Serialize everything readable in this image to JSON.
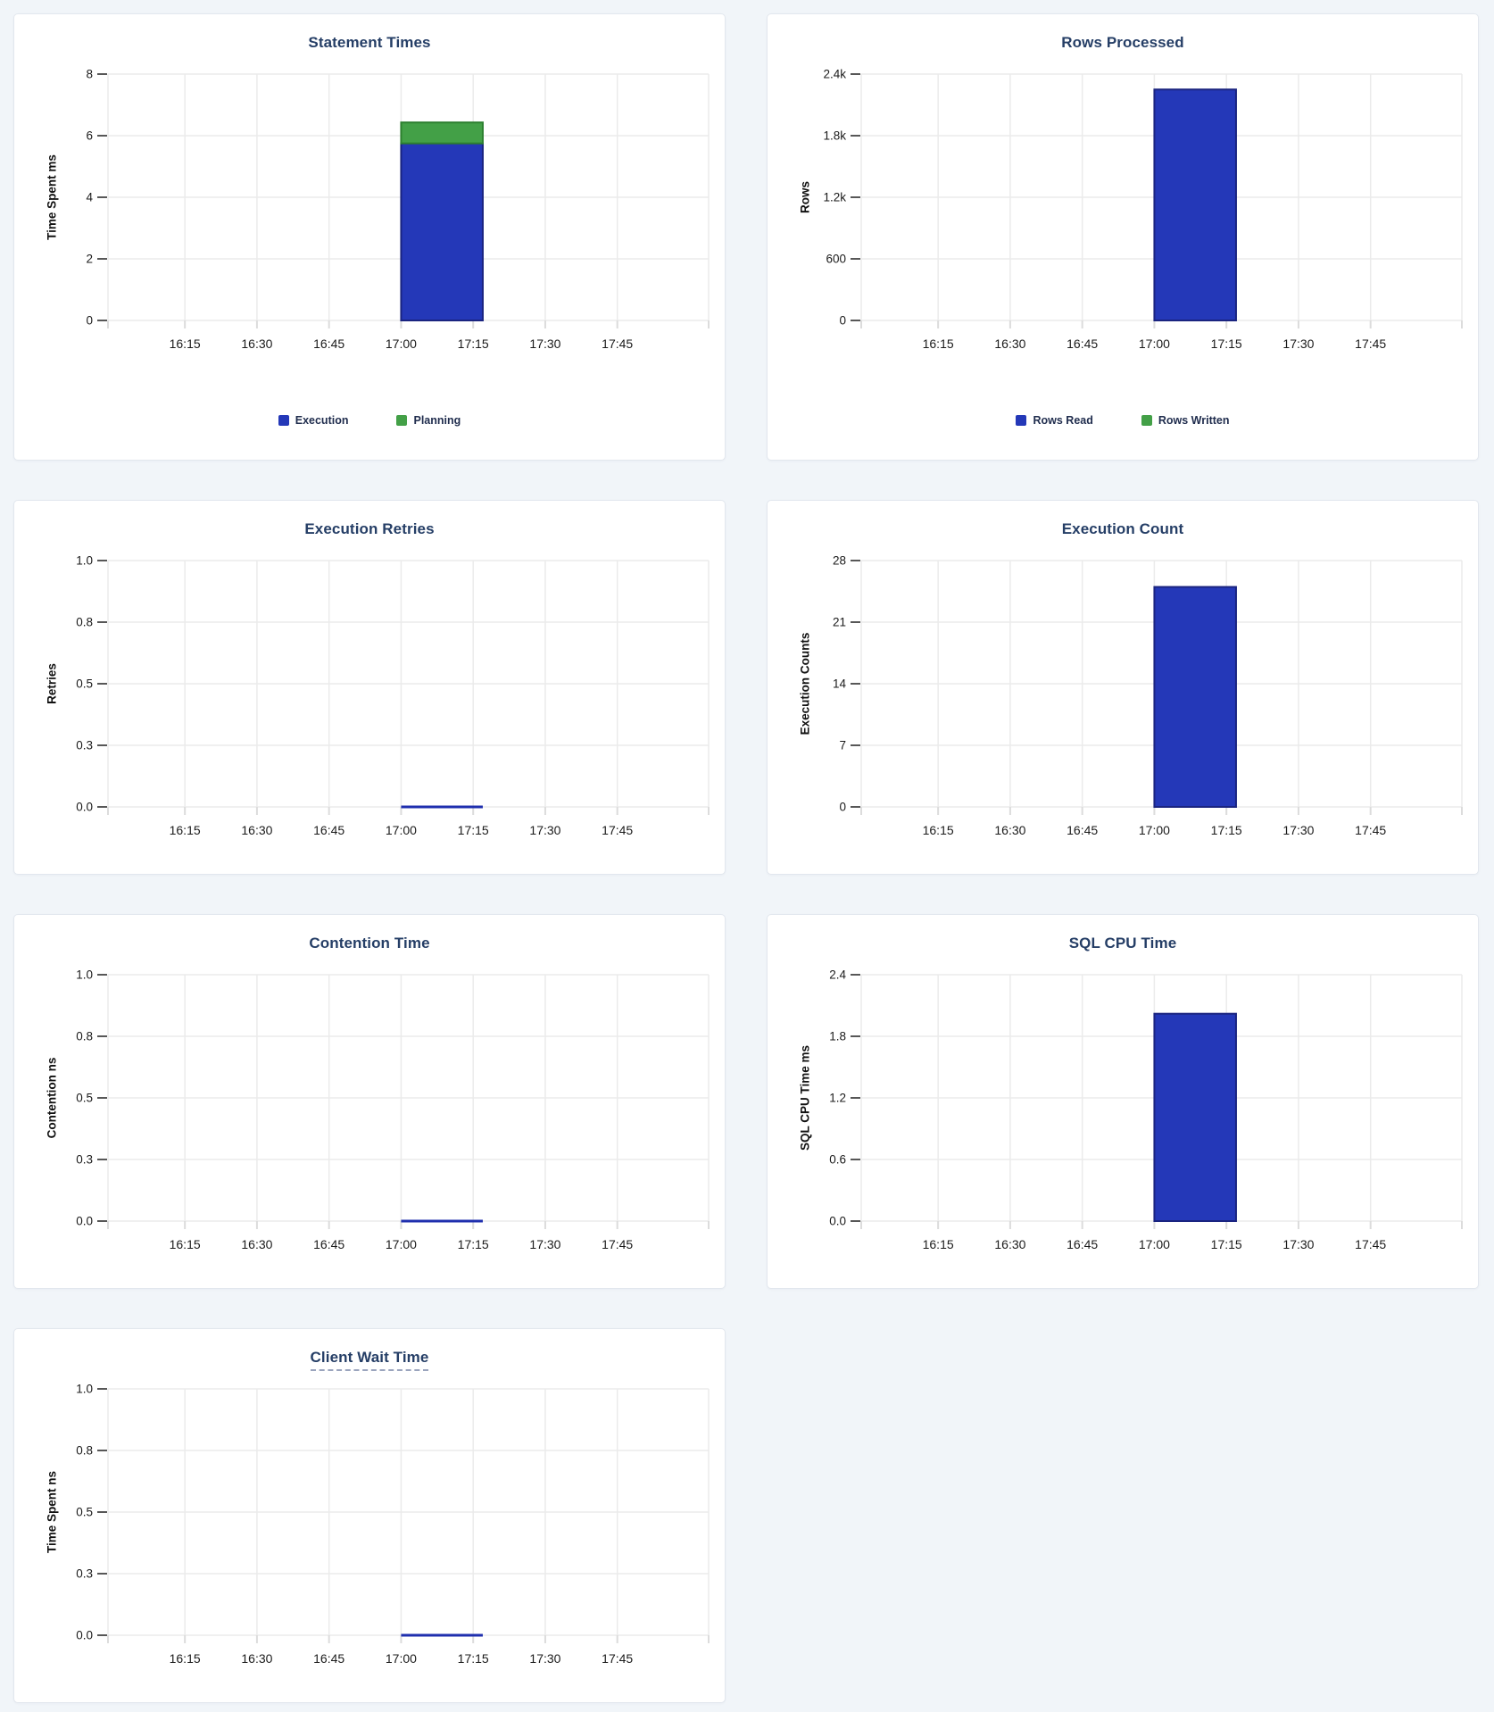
{
  "page": {
    "background_color": "#f1f5f9",
    "card_background": "#ffffff",
    "card_border_color": "#e2e7ee"
  },
  "colors": {
    "bar_blue": "#2438b8",
    "bar_blue_border": "#1a2480",
    "bar_green": "#43a047",
    "bar_green_border": "#2d8030",
    "zero_line": "#1f2fae",
    "chart_title": "#253e66",
    "grid_line": "#ebebeb",
    "axis_tick": "#575757",
    "x_tick": "#dcdcdc",
    "tick_text": "#1b1b1b",
    "legend_text": "#1f2c4d"
  },
  "x_axis": {
    "tick_labels": [
      "16:15",
      "16:30",
      "16:45",
      "17:00",
      "17:15",
      "17:30",
      "17:45"
    ],
    "tick_minutes": [
      975,
      990,
      1005,
      1020,
      1035,
      1050,
      1065
    ],
    "domain_minutes": [
      959,
      1084
    ],
    "bar_interval": [
      "17:00",
      "17:17"
    ],
    "bar_start_minute": 1020,
    "bar_end_minute": 1037,
    "grid": true
  },
  "chart_data": [
    {
      "type": "bar",
      "title": "Statement Times",
      "ylabel": "Time Spent ms",
      "xlabel": "",
      "ylim": [
        0,
        8
      ],
      "ymax": 8,
      "ytick_values": [
        0,
        2,
        4,
        6,
        8
      ],
      "ytick_labels": [
        "0",
        "2",
        "4",
        "6",
        "8"
      ],
      "categories": [
        "16:15",
        "16:30",
        "16:45",
        "17:00",
        "17:15",
        "17:30",
        "17:45"
      ],
      "stacked": true,
      "legend_position": "bottom",
      "series": [
        {
          "name": "Execution",
          "color_key": "bar_blue",
          "value": 5.75
        },
        {
          "name": "Planning",
          "color_key": "bar_green",
          "value": 0.68
        }
      ]
    },
    {
      "type": "bar",
      "title": "Rows Processed",
      "ylabel": "Rows",
      "xlabel": "",
      "ylim": [
        0,
        2400
      ],
      "ymax": 2400,
      "ytick_values": [
        0,
        600,
        1200,
        1800,
        2400
      ],
      "ytick_labels": [
        "0",
        "600",
        "1.2k",
        "1.8k",
        "2.4k"
      ],
      "categories": [
        "16:15",
        "16:30",
        "16:45",
        "17:00",
        "17:15",
        "17:30",
        "17:45"
      ],
      "stacked": true,
      "legend_position": "bottom",
      "series": [
        {
          "name": "Rows Read",
          "color_key": "bar_blue",
          "value": 2250
        },
        {
          "name": "Rows Written",
          "color_key": "bar_green",
          "value": 0
        }
      ]
    },
    {
      "type": "bar",
      "title": "Execution Retries",
      "ylabel": "Retries",
      "xlabel": "",
      "ylim": [
        0,
        1
      ],
      "ymax": 1,
      "ytick_values": [
        0,
        0.25,
        0.5,
        0.75,
        1
      ],
      "ytick_labels": [
        "0.0",
        "0.3",
        "0.5",
        "0.8",
        "1.0"
      ],
      "categories": [
        "16:15",
        "16:30",
        "16:45",
        "17:00",
        "17:15",
        "17:30",
        "17:45"
      ],
      "series": [
        {
          "color_key": "bar_blue",
          "value": 0
        }
      ]
    },
    {
      "type": "bar",
      "title": "Execution Count",
      "ylabel": "Execution Counts",
      "xlabel": "",
      "ylim": [
        0,
        28
      ],
      "ymax": 28,
      "ytick_values": [
        0,
        7,
        14,
        21,
        28
      ],
      "ytick_labels": [
        "0",
        "7",
        "14",
        "21",
        "28"
      ],
      "categories": [
        "16:15",
        "16:30",
        "16:45",
        "17:00",
        "17:15",
        "17:30",
        "17:45"
      ],
      "series": [
        {
          "color_key": "bar_blue",
          "value": 25
        }
      ]
    },
    {
      "type": "bar",
      "title": "Contention Time",
      "ylabel": "Contention ns",
      "xlabel": "",
      "ylim": [
        0,
        1
      ],
      "ymax": 1,
      "ytick_values": [
        0,
        0.25,
        0.5,
        0.75,
        1
      ],
      "ytick_labels": [
        "0.0",
        "0.3",
        "0.5",
        "0.8",
        "1.0"
      ],
      "categories": [
        "16:15",
        "16:30",
        "16:45",
        "17:00",
        "17:15",
        "17:30",
        "17:45"
      ],
      "series": [
        {
          "color_key": "bar_blue",
          "value": 0
        }
      ]
    },
    {
      "type": "bar",
      "title": "SQL CPU Time",
      "ylabel": "SQL CPU Time ms",
      "xlabel": "",
      "ylim": [
        0,
        2.4
      ],
      "ymax": 2.4,
      "ytick_values": [
        0,
        0.6,
        1.2,
        1.8,
        2.4
      ],
      "ytick_labels": [
        "0.0",
        "0.6",
        "1.2",
        "1.8",
        "2.4"
      ],
      "categories": [
        "16:15",
        "16:30",
        "16:45",
        "17:00",
        "17:15",
        "17:30",
        "17:45"
      ],
      "series": [
        {
          "color_key": "bar_blue",
          "value": 2.02
        }
      ]
    },
    {
      "type": "bar",
      "title": "Client Wait Time",
      "title_has_tooltip_underline": true,
      "ylabel": "Time Spent ns",
      "xlabel": "",
      "ylim": [
        0,
        1
      ],
      "ymax": 1,
      "ytick_values": [
        0,
        0.25,
        0.5,
        0.75,
        1
      ],
      "ytick_labels": [
        "0.0",
        "0.3",
        "0.5",
        "0.8",
        "1.0"
      ],
      "categories": [
        "16:15",
        "16:30",
        "16:45",
        "17:00",
        "17:15",
        "17:30",
        "17:45"
      ],
      "series": [
        {
          "color_key": "bar_blue",
          "value": 0
        }
      ]
    }
  ]
}
